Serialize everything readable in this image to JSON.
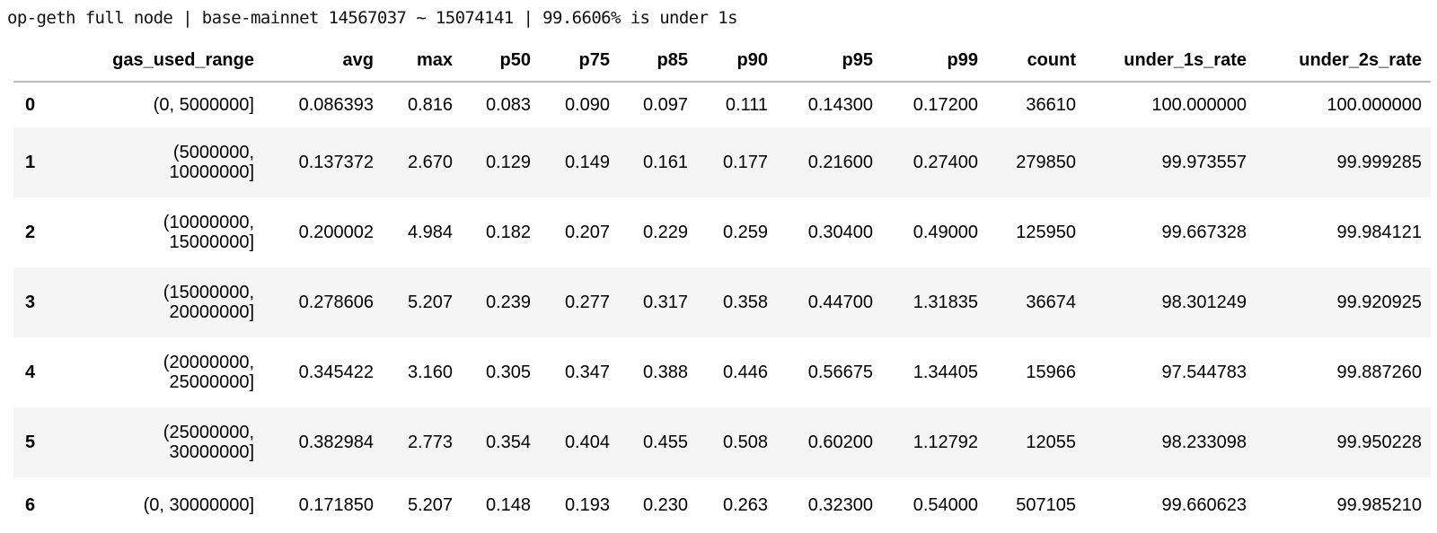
{
  "title": "op-geth full node | base-mainnet 14567037 ~ 15074141 | 99.6606% is under 1s",
  "table": {
    "columns": [
      "",
      "gas_used_range",
      "avg",
      "max",
      "p50",
      "p75",
      "p85",
      "p90",
      "p95",
      "p99",
      "count",
      "under_1s_rate",
      "under_2s_rate"
    ],
    "rows": [
      [
        "0",
        "(0, 5000000]",
        "0.086393",
        "0.816",
        "0.083",
        "0.090",
        "0.097",
        "0.111",
        "0.14300",
        "0.17200",
        "36610",
        "100.000000",
        "100.000000"
      ],
      [
        "1",
        "(5000000, 10000000]",
        "0.137372",
        "2.670",
        "0.129",
        "0.149",
        "0.161",
        "0.177",
        "0.21600",
        "0.27400",
        "279850",
        "99.973557",
        "99.999285"
      ],
      [
        "2",
        "(10000000, 15000000]",
        "0.200002",
        "4.984",
        "0.182",
        "0.207",
        "0.229",
        "0.259",
        "0.30400",
        "0.49000",
        "125950",
        "99.667328",
        "99.984121"
      ],
      [
        "3",
        "(15000000, 20000000]",
        "0.278606",
        "5.207",
        "0.239",
        "0.277",
        "0.317",
        "0.358",
        "0.44700",
        "1.31835",
        "36674",
        "98.301249",
        "99.920925"
      ],
      [
        "4",
        "(20000000, 25000000]",
        "0.345422",
        "3.160",
        "0.305",
        "0.347",
        "0.388",
        "0.446",
        "0.56675",
        "1.34405",
        "15966",
        "97.544783",
        "99.887260"
      ],
      [
        "5",
        "(25000000, 30000000]",
        "0.382984",
        "2.773",
        "0.354",
        "0.404",
        "0.455",
        "0.508",
        "0.60200",
        "1.12792",
        "12055",
        "98.233098",
        "99.950228"
      ],
      [
        "6",
        "(0, 30000000]",
        "0.171850",
        "5.207",
        "0.148",
        "0.193",
        "0.230",
        "0.263",
        "0.32300",
        "0.54000",
        "507105",
        "99.660623",
        "99.985210"
      ]
    ]
  }
}
